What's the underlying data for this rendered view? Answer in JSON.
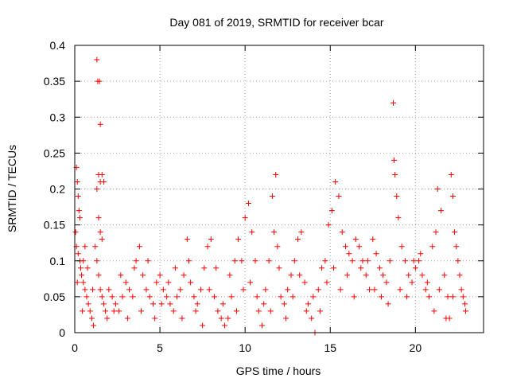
{
  "chart_data": {
    "type": "scatter",
    "title": "Day 081 of 2019, SRMTID for receiver bcar",
    "xlabel": "GPS time / hours",
    "ylabel": "SRMTID / TECUs",
    "xlim": [
      0,
      24
    ],
    "ylim": [
      0,
      0.4
    ],
    "xticks": [
      0,
      5,
      10,
      15,
      20
    ],
    "xtick_labels": [
      "0",
      "5",
      "10",
      "15",
      "20"
    ],
    "yticks": [
      0,
      0.05,
      0.1,
      0.15,
      0.2,
      0.25,
      0.3,
      0.35,
      0.4
    ],
    "ytick_labels": [
      "0",
      "0.05",
      "0.1",
      "0.15",
      "0.2",
      "0.25",
      "0.3",
      "0.35",
      "0.4"
    ],
    "grid": true,
    "marker": "plus",
    "color": "#ff0000",
    "series": [
      {
        "name": "SRMTID",
        "points": [
          [
            0.1,
            0.23
          ],
          [
            0.15,
            0.21
          ],
          [
            0.2,
            0.19
          ],
          [
            0.25,
            0.17
          ],
          [
            0.3,
            0.16
          ],
          [
            0.05,
            0.14
          ],
          [
            0.1,
            0.12
          ],
          [
            0.2,
            0.11
          ],
          [
            0.3,
            0.1
          ],
          [
            0.35,
            0.09
          ],
          [
            0.4,
            0.08
          ],
          [
            0.5,
            0.07
          ],
          [
            0.6,
            0.06
          ],
          [
            0.7,
            0.05
          ],
          [
            0.8,
            0.04
          ],
          [
            0.9,
            0.03
          ],
          [
            1.0,
            0.02
          ],
          [
            1.1,
            0.01
          ],
          [
            0.5,
            0.1
          ],
          [
            0.6,
            0.12
          ],
          [
            1.3,
            0.38
          ],
          [
            1.35,
            0.35
          ],
          [
            1.45,
            0.35
          ],
          [
            1.5,
            0.29
          ],
          [
            1.4,
            0.22
          ],
          [
            1.5,
            0.21
          ],
          [
            1.6,
            0.22
          ],
          [
            1.7,
            0.21
          ],
          [
            1.3,
            0.2
          ],
          [
            1.4,
            0.16
          ],
          [
            1.5,
            0.14
          ],
          [
            1.6,
            0.13
          ],
          [
            1.2,
            0.12
          ],
          [
            1.3,
            0.1
          ],
          [
            1.4,
            0.08
          ],
          [
            1.5,
            0.06
          ],
          [
            1.6,
            0.05
          ],
          [
            1.7,
            0.04
          ],
          [
            1.8,
            0.03
          ],
          [
            1.9,
            0.02
          ],
          [
            2.0,
            0.06
          ],
          [
            2.2,
            0.05
          ],
          [
            2.4,
            0.04
          ],
          [
            2.6,
            0.03
          ],
          [
            2.8,
            0.05
          ],
          [
            3.0,
            0.07
          ],
          [
            3.2,
            0.06
          ],
          [
            3.4,
            0.05
          ],
          [
            3.6,
            0.1
          ],
          [
            3.8,
            0.12
          ],
          [
            4.0,
            0.08
          ],
          [
            4.2,
            0.06
          ],
          [
            4.4,
            0.05
          ],
          [
            4.6,
            0.04
          ],
          [
            4.8,
            0.07
          ],
          [
            5.0,
            0.08
          ],
          [
            5.2,
            0.06
          ],
          [
            5.4,
            0.05
          ],
          [
            5.6,
            0.04
          ],
          [
            5.8,
            0.03
          ],
          [
            6.0,
            0.05
          ],
          [
            6.2,
            0.06
          ],
          [
            6.4,
            0.08
          ],
          [
            6.6,
            0.13
          ],
          [
            6.8,
            0.07
          ],
          [
            7.0,
            0.05
          ],
          [
            7.2,
            0.04
          ],
          [
            7.4,
            0.06
          ],
          [
            7.6,
            0.09
          ],
          [
            7.8,
            0.12
          ],
          [
            8.0,
            0.13
          ],
          [
            8.2,
            0.05
          ],
          [
            8.4,
            0.03
          ],
          [
            8.6,
            0.02
          ],
          [
            8.8,
            0.01
          ],
          [
            9.0,
            0.02
          ],
          [
            9.2,
            0.05
          ],
          [
            9.4,
            0.1
          ],
          [
            9.6,
            0.13
          ],
          [
            9.8,
            0.1
          ],
          [
            10.0,
            0.16
          ],
          [
            10.2,
            0.18
          ],
          [
            10.4,
            0.14
          ],
          [
            10.6,
            0.1
          ],
          [
            10.8,
            0.03
          ],
          [
            11.0,
            0.01
          ],
          [
            11.2,
            0.06
          ],
          [
            11.4,
            0.1
          ],
          [
            11.6,
            0.19
          ],
          [
            11.8,
            0.22
          ],
          [
            11.7,
            0.14
          ],
          [
            11.9,
            0.12
          ],
          [
            12.1,
            0.05
          ],
          [
            12.3,
            0.04
          ],
          [
            12.5,
            0.06
          ],
          [
            12.7,
            0.08
          ],
          [
            12.9,
            0.1
          ],
          [
            13.1,
            0.13
          ],
          [
            13.3,
            0.14
          ],
          [
            13.5,
            0.07
          ],
          [
            13.7,
            0.04
          ],
          [
            13.9,
            0.02
          ],
          [
            14.1,
            0.0
          ],
          [
            14.3,
            0.06
          ],
          [
            14.5,
            0.09
          ],
          [
            14.7,
            0.1
          ],
          [
            14.9,
            0.15
          ],
          [
            15.1,
            0.17
          ],
          [
            15.3,
            0.21
          ],
          [
            15.5,
            0.19
          ],
          [
            15.7,
            0.14
          ],
          [
            15.9,
            0.12
          ],
          [
            16.1,
            0.11
          ],
          [
            16.3,
            0.1
          ],
          [
            16.5,
            0.13
          ],
          [
            16.7,
            0.12
          ],
          [
            16.9,
            0.1
          ],
          [
            17.1,
            0.08
          ],
          [
            17.3,
            0.06
          ],
          [
            17.5,
            0.13
          ],
          [
            17.7,
            0.11
          ],
          [
            17.9,
            0.09
          ],
          [
            18.1,
            0.08
          ],
          [
            18.3,
            0.07
          ],
          [
            18.5,
            0.1
          ],
          [
            18.7,
            0.32
          ],
          [
            18.75,
            0.24
          ],
          [
            18.8,
            0.22
          ],
          [
            18.9,
            0.19
          ],
          [
            19.0,
            0.16
          ],
          [
            19.2,
            0.12
          ],
          [
            19.4,
            0.1
          ],
          [
            19.6,
            0.08
          ],
          [
            19.8,
            0.07
          ],
          [
            20.0,
            0.09
          ],
          [
            20.2,
            0.1
          ],
          [
            20.4,
            0.08
          ],
          [
            20.6,
            0.06
          ],
          [
            20.8,
            0.05
          ],
          [
            21.0,
            0.12
          ],
          [
            21.2,
            0.14
          ],
          [
            21.3,
            0.2
          ],
          [
            21.5,
            0.17
          ],
          [
            21.7,
            0.08
          ],
          [
            21.9,
            0.05
          ],
          [
            22.0,
            0.02
          ],
          [
            22.1,
            0.22
          ],
          [
            22.2,
            0.19
          ],
          [
            22.3,
            0.14
          ],
          [
            22.4,
            0.12
          ],
          [
            22.5,
            0.1
          ],
          [
            22.6,
            0.08
          ],
          [
            22.7,
            0.06
          ],
          [
            22.8,
            0.05
          ],
          [
            22.9,
            0.04
          ],
          [
            22.95,
            0.03
          ],
          [
            0.15,
            0.07
          ],
          [
            0.45,
            0.03
          ],
          [
            0.75,
            0.09
          ],
          [
            1.05,
            0.06
          ],
          [
            2.3,
            0.03
          ],
          [
            2.7,
            0.08
          ],
          [
            3.1,
            0.02
          ],
          [
            3.5,
            0.09
          ],
          [
            3.9,
            0.03
          ],
          [
            4.3,
            0.1
          ],
          [
            4.7,
            0.02
          ],
          [
            5.1,
            0.04
          ],
          [
            5.5,
            0.07
          ],
          [
            5.9,
            0.09
          ],
          [
            6.3,
            0.02
          ],
          [
            6.7,
            0.1
          ],
          [
            7.1,
            0.03
          ],
          [
            7.5,
            0.01
          ],
          [
            7.9,
            0.06
          ],
          [
            8.3,
            0.09
          ],
          [
            8.7,
            0.04
          ],
          [
            9.1,
            0.08
          ],
          [
            9.5,
            0.03
          ],
          [
            9.9,
            0.06
          ],
          [
            10.3,
            0.07
          ],
          [
            10.7,
            0.05
          ],
          [
            11.1,
            0.04
          ],
          [
            11.5,
            0.03
          ],
          [
            12.0,
            0.09
          ],
          [
            12.4,
            0.02
          ],
          [
            12.8,
            0.05
          ],
          [
            13.2,
            0.08
          ],
          [
            13.6,
            0.03
          ],
          [
            14.0,
            0.05
          ],
          [
            14.4,
            0.03
          ],
          [
            14.8,
            0.07
          ],
          [
            15.2,
            0.09
          ],
          [
            15.6,
            0.06
          ],
          [
            16.0,
            0.08
          ],
          [
            16.4,
            0.05
          ],
          [
            16.8,
            0.09
          ],
          [
            17.2,
            0.1
          ],
          [
            17.6,
            0.06
          ],
          [
            18.0,
            0.05
          ],
          [
            18.4,
            0.04
          ],
          [
            19.1,
            0.06
          ],
          [
            19.5,
            0.05
          ],
          [
            19.9,
            0.1
          ],
          [
            20.3,
            0.11
          ],
          [
            20.7,
            0.07
          ],
          [
            21.1,
            0.03
          ],
          [
            21.4,
            0.06
          ],
          [
            21.8,
            0.02
          ],
          [
            22.2,
            0.05
          ]
        ]
      }
    ]
  }
}
